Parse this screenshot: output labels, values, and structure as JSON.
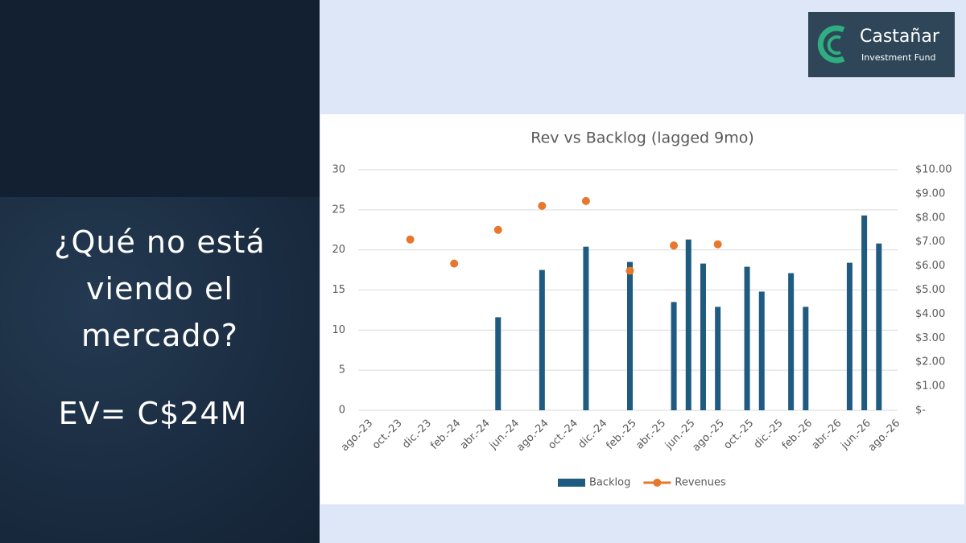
{
  "slide": {
    "heading": "¿Qué no está viendo el mercado?",
    "ev": "EV= C$24M",
    "logo": {
      "name": "Castañar",
      "subtitle": "Investment Fund"
    }
  },
  "chart_data": {
    "type": "bar",
    "title": "Rev vs Backlog (lagged 9mo)",
    "categories": [
      "ago.-23",
      null,
      "oct.-23",
      null,
      "dic.-23",
      null,
      "feb.-24",
      null,
      "abr.-24",
      null,
      "jun.-24",
      null,
      "ago.-24",
      null,
      "oct.-24",
      null,
      "dic.-24",
      null,
      "feb.-25",
      null,
      "abr.-25",
      null,
      "jun.-25",
      null,
      "ago.-25",
      null,
      "oct.-25",
      null,
      "dic.-25",
      null,
      "feb.-26",
      null,
      "abr.-26",
      null,
      "jun.-26",
      null,
      "ago.-26"
    ],
    "series": [
      {
        "name": "Backlog",
        "type": "bar",
        "color": "#1f5b80",
        "values": [
          null,
          null,
          null,
          null,
          null,
          null,
          null,
          null,
          null,
          11.6,
          null,
          null,
          17.5,
          null,
          null,
          20.4,
          null,
          null,
          18.5,
          null,
          null,
          13.5,
          21.3,
          18.3,
          12.9,
          null,
          17.9,
          14.8,
          null,
          17.1,
          12.9,
          null,
          null,
          18.4,
          24.3,
          20.8,
          null
        ]
      },
      {
        "name": "Revenues",
        "type": "scatter",
        "axis": "y2",
        "color": "#e8762d",
        "values": [
          null,
          null,
          null,
          7.1,
          null,
          null,
          6.1,
          null,
          null,
          7.5,
          null,
          null,
          8.5,
          null,
          null,
          8.7,
          null,
          null,
          5.8,
          null,
          null,
          6.85,
          null,
          null,
          6.9,
          null,
          null,
          null,
          null,
          null,
          null,
          null,
          null,
          null,
          null,
          null,
          null
        ]
      }
    ],
    "ylim": [
      0,
      30
    ],
    "yticks": [
      0,
      5,
      10,
      15,
      20,
      25,
      30
    ],
    "y2lim": [
      0,
      10
    ],
    "y2ticks": [
      {
        "value": 0,
        "label": "$-"
      },
      {
        "value": 1,
        "label": "$1.00"
      },
      {
        "value": 2,
        "label": "$2.00"
      },
      {
        "value": 3,
        "label": "$3.00"
      },
      {
        "value": 4,
        "label": "$4.00"
      },
      {
        "value": 5,
        "label": "$5.00"
      },
      {
        "value": 6,
        "label": "$6.00"
      },
      {
        "value": 7,
        "label": "$7.00"
      },
      {
        "value": 8,
        "label": "$8.00"
      },
      {
        "value": 9,
        "label": "$9.00"
      },
      {
        "value": 10,
        "label": "$10.00"
      }
    ],
    "grid": true,
    "legend": "bottom"
  }
}
